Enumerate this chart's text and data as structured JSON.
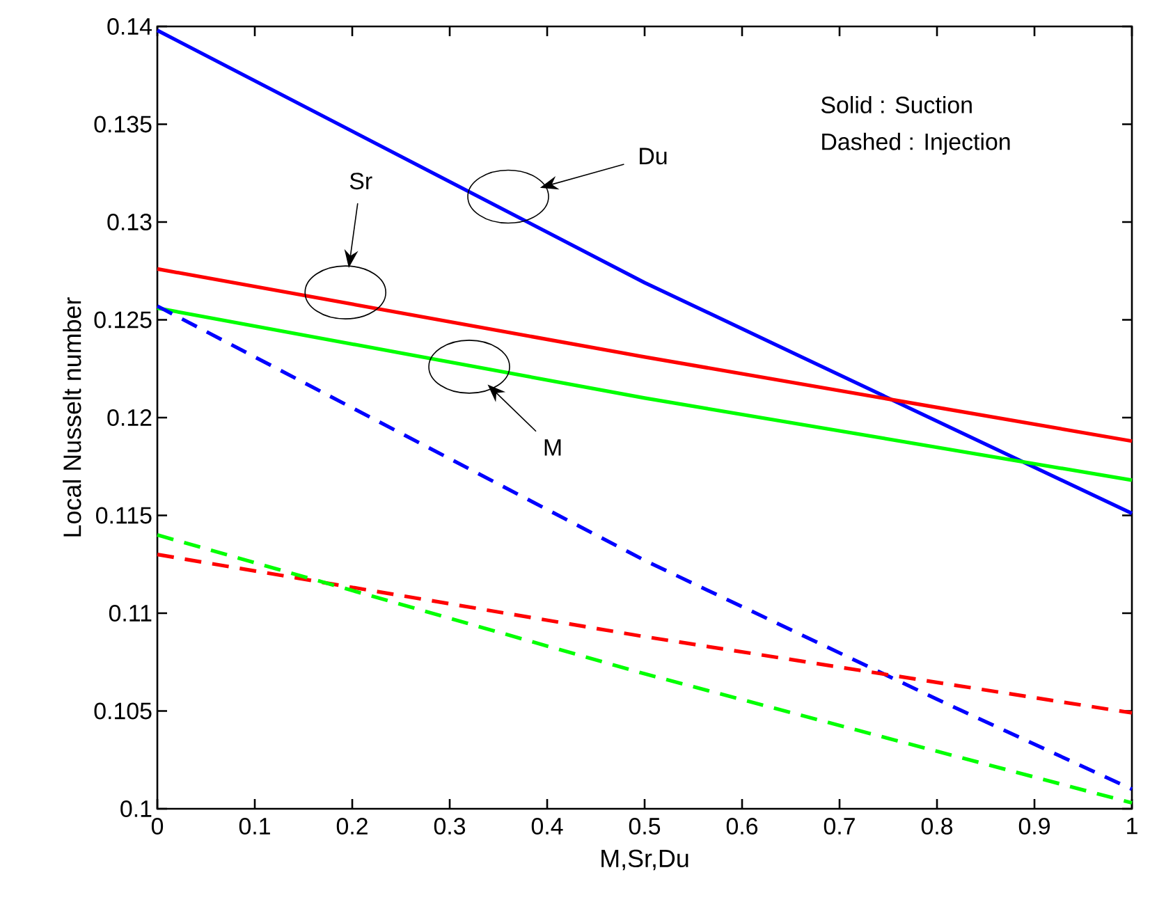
{
  "chart_data": {
    "type": "line",
    "xlabel": "M,Sr,Du",
    "ylabel": "Local Nusselt number",
    "xlim": [
      0,
      1
    ],
    "ylim": [
      0.1,
      0.14
    ],
    "xticks": [
      0,
      0.1,
      0.2,
      0.3,
      0.4,
      0.5,
      0.6,
      0.7,
      0.8,
      0.9,
      1
    ],
    "yticks": [
      0.1,
      0.105,
      0.11,
      0.115,
      0.12,
      0.125,
      0.13,
      0.135,
      0.14
    ],
    "marker": "none",
    "annotations": [
      "Sr",
      "Du",
      "M",
      "Solid : Suction",
      "Dashed : Injection"
    ],
    "series": [
      {
        "color": "#0000ff",
        "line_style": "solid",
        "x": [
          0,
          0.5,
          1
        ],
        "values": [
          0.1398,
          0.1269,
          0.1151
        ]
      },
      {
        "color": "#ff0000",
        "line_style": "solid",
        "x": [
          0,
          0.5,
          1
        ],
        "values": [
          0.1276,
          0.1231,
          0.1188
        ]
      },
      {
        "color": "#00ff00",
        "line_style": "solid",
        "x": [
          0,
          0.5,
          1
        ],
        "values": [
          0.1256,
          0.121,
          0.1168
        ]
      },
      {
        "color": "#0000ff",
        "line_style": "dashed",
        "x": [
          0,
          0.5,
          0.8,
          1
        ],
        "values": [
          0.1257,
          0.1127,
          0.1056,
          0.101
        ]
      },
      {
        "color": "#ff0000",
        "line_style": "dashed",
        "x": [
          0,
          0.5,
          1
        ],
        "values": [
          0.113,
          0.1088,
          0.1049
        ]
      },
      {
        "color": "#00ff00",
        "line_style": "dashed",
        "x": [
          0,
          0.5,
          1
        ],
        "values": [
          0.114,
          0.1069,
          0.1003
        ]
      }
    ]
  }
}
